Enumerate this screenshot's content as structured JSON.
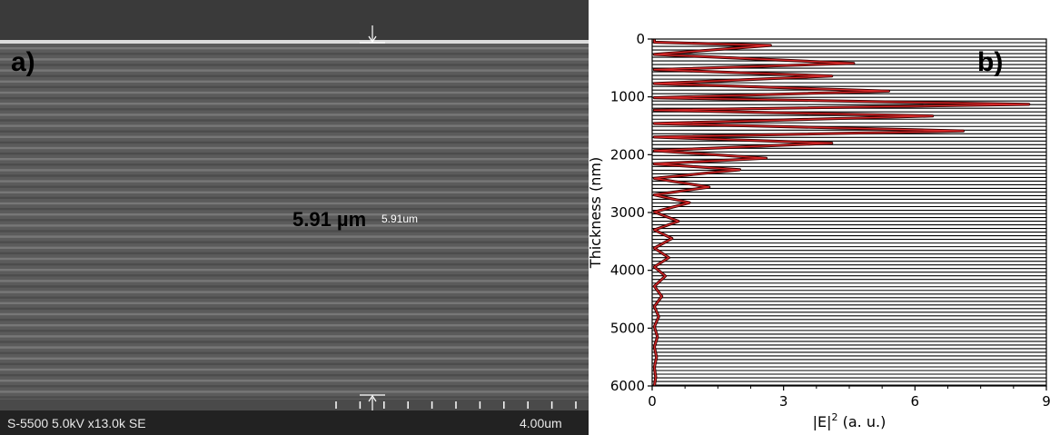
{
  "panel_a": {
    "label": "a)",
    "measurement_bold": "5.91 µm",
    "measurement_small": "5.91um",
    "info_bar": "S-5500 5.0kV x13.0k SE",
    "scale_label": "4.00um"
  },
  "colors": {
    "curve": "#d62728",
    "interface_lines": "#000000",
    "sem_background": "#5a5a5a"
  },
  "chart_data": {
    "type": "line",
    "panel_label": "b)",
    "xlabel_base": "|E|",
    "xlabel_exp": "2",
    "xlabel_unit": " (a. u.)",
    "ylabel": "Thickness (nm)",
    "xlim": [
      0,
      9
    ],
    "ylim": [
      6000,
      0
    ],
    "y_inverted": true,
    "x_ticks": [
      "0",
      "3",
      "6",
      "9"
    ],
    "y_ticks": [
      "0",
      "1000",
      "2000",
      "3000",
      "4000",
      "5000",
      "6000"
    ],
    "layer_interfaces": "horizontal black lines roughly every 63 nm",
    "peaks": [
      {
        "y": 110,
        "x": 2.7
      },
      {
        "y": 420,
        "x": 4.6
      },
      {
        "y": 640,
        "x": 4.1
      },
      {
        "y": 900,
        "x": 5.4
      },
      {
        "y": 1130,
        "x": 8.6
      },
      {
        "y": 1330,
        "x": 6.4
      },
      {
        "y": 1590,
        "x": 7.1
      },
      {
        "y": 1800,
        "x": 4.1
      },
      {
        "y": 2060,
        "x": 2.6
      },
      {
        "y": 2260,
        "x": 2.0
      },
      {
        "y": 2560,
        "x": 1.3
      },
      {
        "y": 2830,
        "x": 0.85
      },
      {
        "y": 3150,
        "x": 0.6
      },
      {
        "y": 3450,
        "x": 0.45
      },
      {
        "y": 3780,
        "x": 0.38
      },
      {
        "y": 4100,
        "x": 0.3
      },
      {
        "y": 4450,
        "x": 0.22
      },
      {
        "y": 4800,
        "x": 0.15
      },
      {
        "y": 5150,
        "x": 0.12
      },
      {
        "y": 5500,
        "x": 0.1
      },
      {
        "y": 5850,
        "x": 0.08
      }
    ]
  }
}
